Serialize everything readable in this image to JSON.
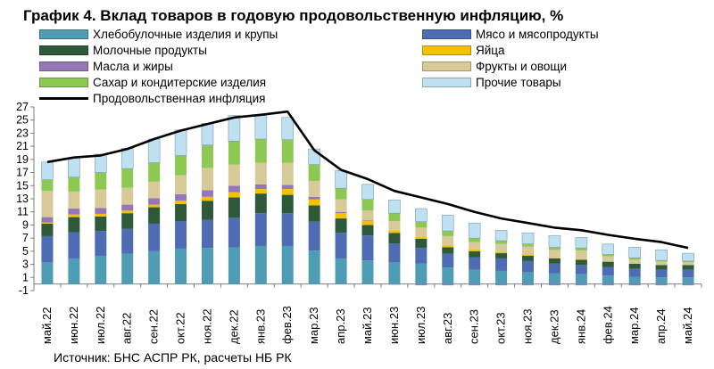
{
  "chart_data": {
    "type": "bar",
    "title": "График 4. Вклад товаров в годовую продовольственную инфляцию, %",
    "stacked": true,
    "xlabel": "",
    "ylabel": "",
    "ylim": [
      -1,
      27
    ],
    "yticks": [
      -1,
      1,
      3,
      5,
      7,
      9,
      11,
      13,
      15,
      17,
      19,
      21,
      23,
      25,
      27
    ],
    "grid": false,
    "legend_position": "top",
    "categories": [
      "май.22",
      "июн.22",
      "июл.22",
      "авг.22",
      "сен.22",
      "окт.22",
      "ноя.22",
      "дек.22",
      "янв.23",
      "фев.23",
      "мар.23",
      "апр.23",
      "май.23",
      "июн.23",
      "июл.23",
      "авг.23",
      "сен.23",
      "окт.23",
      "ноя.23",
      "дек.23",
      "янв.24",
      "фев.24",
      "мар.24",
      "апр.24",
      "май.24"
    ],
    "series": [
      {
        "name": "Хлебобулочные изделия и крупы",
        "color": "#4f9db4",
        "values": [
          3.3,
          3.9,
          4.3,
          4.6,
          5.0,
          5.4,
          5.5,
          5.6,
          5.8,
          5.8,
          5.1,
          3.9,
          3.6,
          3.3,
          3.1,
          2.5,
          2.2,
          2.0,
          1.8,
          1.6,
          1.5,
          1.3,
          1.1,
          1.0,
          1.0
        ]
      },
      {
        "name": "Мясо и мясопродукты",
        "color": "#4e6cb4",
        "values": [
          4.0,
          4.0,
          3.8,
          3.8,
          4.2,
          4.2,
          4.3,
          4.5,
          5.0,
          5.0,
          4.4,
          3.9,
          3.8,
          2.9,
          2.4,
          2.1,
          1.9,
          1.9,
          1.7,
          1.5,
          1.4,
          1.3,
          1.2,
          1.2,
          1.2
        ]
      },
      {
        "name": "Молочные продукты",
        "color": "#2e5a3a",
        "values": [
          1.9,
          2.3,
          2.2,
          2.4,
          2.5,
          2.6,
          2.9,
          3.1,
          3.0,
          2.8,
          2.5,
          2.2,
          1.6,
          1.6,
          1.4,
          1.0,
          0.9,
          0.8,
          0.8,
          0.8,
          0.8,
          0.8,
          0.8,
          0.7,
          0.7
        ]
      },
      {
        "name": "Яйца",
        "color": "#f2c200",
        "values": [
          0.2,
          0.4,
          0.4,
          0.4,
          0.4,
          0.5,
          0.6,
          0.8,
          0.7,
          0.9,
          0.9,
          0.8,
          0.6,
          0.4,
          0.3,
          0.3,
          0.3,
          0.2,
          0.2,
          0.1,
          0.1,
          0.0,
          0.0,
          0.0,
          0.0
        ]
      },
      {
        "name": "Масла и жиры",
        "color": "#9577b8",
        "values": [
          0.8,
          0.9,
          0.9,
          0.9,
          1.0,
          1.0,
          1.0,
          1.0,
          0.7,
          0.6,
          0.4,
          0.2,
          0.1,
          -0.1,
          -0.2,
          -0.2,
          -0.2,
          -0.2,
          -0.2,
          -0.2,
          -0.2,
          -0.2,
          -0.2,
          -0.2,
          -0.2
        ]
      },
      {
        "name": "Фрукты и овощи",
        "color": "#d8ca98",
        "values": [
          4.0,
          2.6,
          2.8,
          2.6,
          2.5,
          2.9,
          3.4,
          3.2,
          3.3,
          3.4,
          2.4,
          1.9,
          1.5,
          1.4,
          1.4,
          1.4,
          1.1,
          1.2,
          1.2,
          1.2,
          1.3,
          0.8,
          0.6,
          0.5,
          0.4
        ]
      },
      {
        "name": "Сахар и кондитерские изделия",
        "color": "#8dc952",
        "values": [
          1.7,
          2.2,
          2.6,
          2.9,
          2.9,
          3.0,
          3.5,
          3.6,
          3.6,
          3.5,
          2.5,
          1.7,
          1.7,
          1.2,
          0.9,
          0.8,
          0.6,
          0.5,
          0.4,
          0.4,
          0.4,
          0.3,
          0.3,
          0.2,
          0.2
        ]
      },
      {
        "name": "Прочие товары",
        "color": "#bfe0f1",
        "values": [
          2.7,
          3.0,
          2.8,
          3.1,
          3.6,
          3.9,
          3.3,
          3.9,
          3.6,
          3.4,
          2.4,
          2.7,
          2.3,
          2.0,
          2.0,
          2.4,
          2.3,
          1.6,
          1.7,
          1.8,
          1.6,
          1.6,
          1.6,
          1.6,
          1.2
        ]
      }
    ],
    "line_series": {
      "name": "Продовольственная инфляция",
      "color": "#000000",
      "values": [
        18.6,
        19.3,
        19.6,
        20.6,
        22.1,
        23.4,
        24.4,
        25.4,
        25.8,
        26.3,
        20.4,
        17.4,
        16.0,
        14.2,
        13.2,
        12.2,
        11.0,
        10.0,
        9.3,
        8.6,
        8.2,
        7.5,
        6.9,
        6.4,
        5.5
      ]
    },
    "source": "Источник: БНС АСПР РК, расчеты НБ РК"
  }
}
